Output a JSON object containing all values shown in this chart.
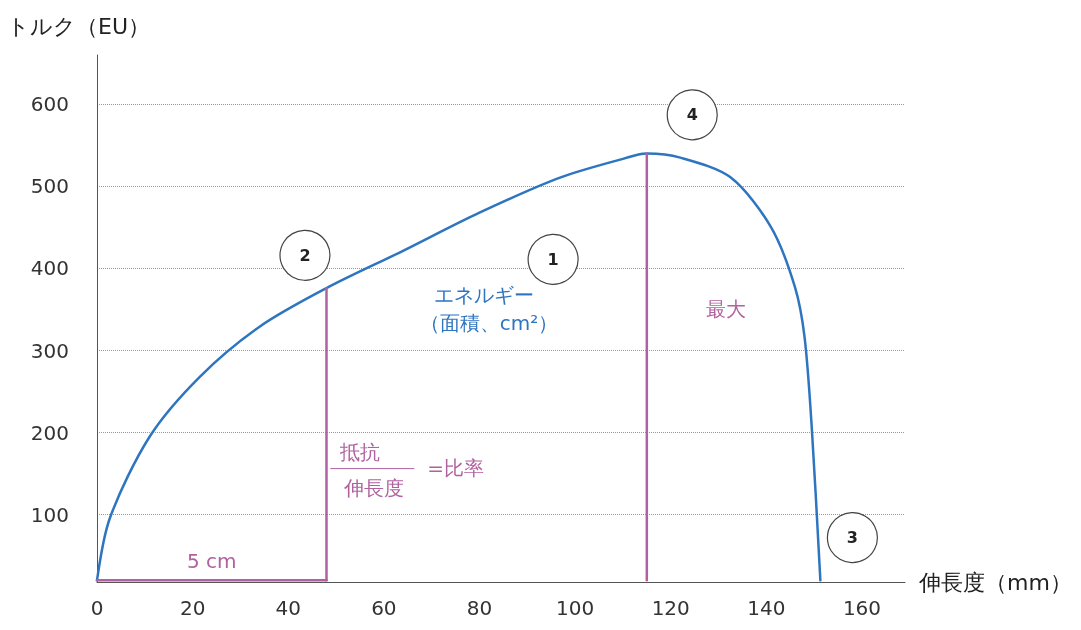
{
  "chart_data": {
    "type": "line",
    "xlabel": "伸長度（mm）",
    "ylabel": "トルク（EU）",
    "xlim": [
      0,
      169
    ],
    "xticks": [
      0,
      20,
      40,
      60,
      80,
      100,
      120,
      140,
      160
    ],
    "ylim": [
      18,
      660
    ],
    "yticks": [
      100,
      200,
      300,
      400,
      500,
      600
    ],
    "grid": "y",
    "marker": "none",
    "line_style": "solid",
    "series": [
      {
        "color": "#2e75c0",
        "x": [
          0,
          2.7,
          11,
          21.5,
          34,
          48,
          63.5,
          80,
          97,
          113.5,
          115,
          122,
          132.5,
          141,
          146,
          148,
          149.5,
          151.3
        ],
        "values": [
          20,
          96,
          195,
          268,
          329,
          376,
          420,
          468,
          511,
          539,
          540,
          535,
          511,
          450,
          377,
          316,
          206,
          20
        ]
      },
      {
        "type": "line",
        "color": "#b0619f",
        "x": [
          48,
          48
        ],
        "values": [
          20,
          376
        ]
      },
      {
        "type": "line",
        "color": "#b0619f",
        "x": [
          115,
          115
        ],
        "values": [
          20,
          540
        ]
      },
      {
        "type": "line",
        "color": "#b0619f",
        "x": [
          0,
          48
        ],
        "values": [
          20,
          20
        ]
      }
    ],
    "annotations": [
      "1",
      "2",
      "3",
      "4",
      "エネルギー",
      "（面積、cm²）",
      "最大",
      "抵抗",
      "伸長度",
      "=比率",
      "5 cm"
    ]
  }
}
